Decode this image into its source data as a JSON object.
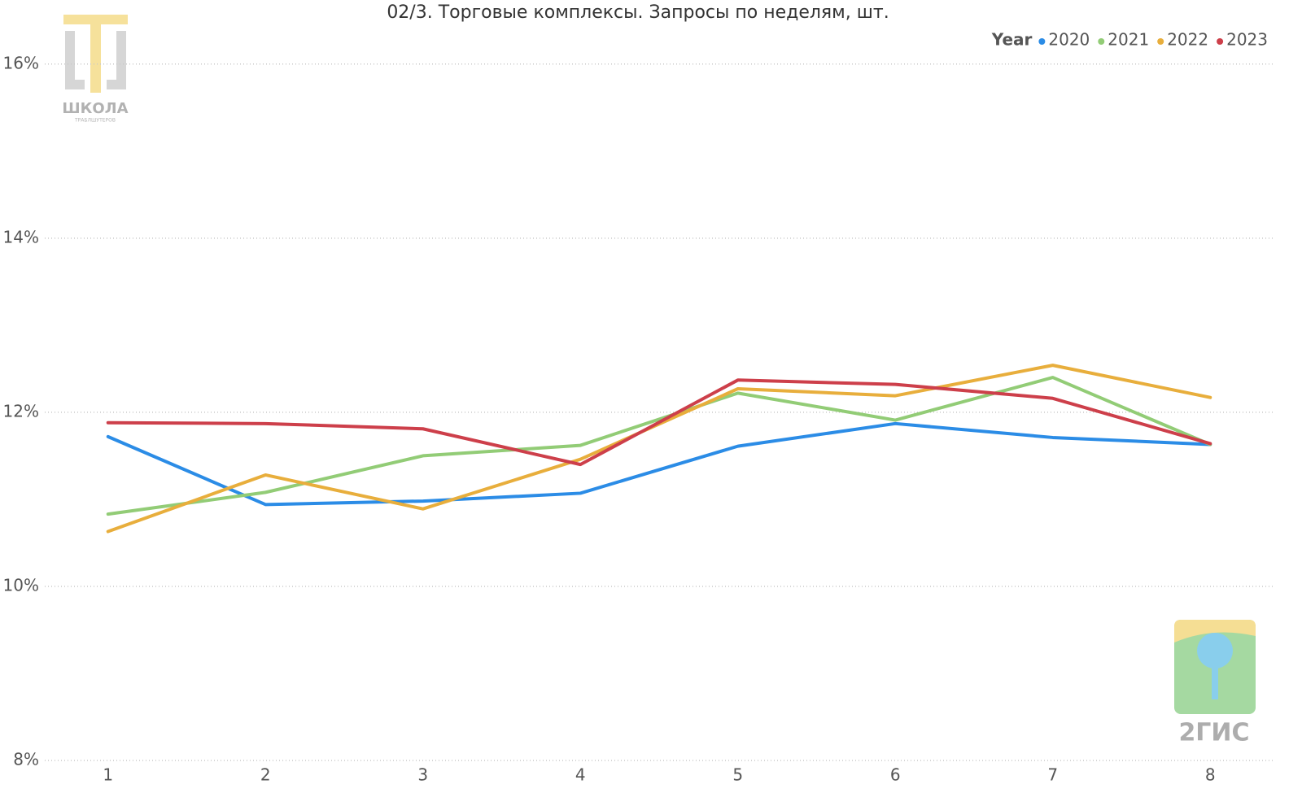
{
  "chart_data": {
    "type": "line",
    "title": "02/3. Торговые комплексы. Запросы по неделям, шт.",
    "legend_title": "Year",
    "legend_position": "top-right",
    "categories": [
      "1",
      "2",
      "3",
      "4",
      "5",
      "6",
      "7",
      "8"
    ],
    "series": [
      {
        "name": "2020",
        "color": "#2b8ce6",
        "values": [
          11.72,
          10.94,
          10.98,
          11.07,
          11.61,
          11.87,
          11.71,
          11.63
        ]
      },
      {
        "name": "2021",
        "color": "#92cc76",
        "values": [
          10.83,
          11.08,
          11.5,
          11.62,
          12.22,
          11.91,
          12.4,
          11.63
        ]
      },
      {
        "name": "2022",
        "color": "#e8ae3c",
        "values": [
          10.63,
          11.28,
          10.89,
          11.46,
          12.27,
          12.19,
          12.54,
          12.17
        ]
      },
      {
        "name": "2023",
        "color": "#cd3f4a",
        "values": [
          11.88,
          11.87,
          11.81,
          11.4,
          12.37,
          12.32,
          12.16,
          11.64
        ]
      }
    ],
    "ylim": [
      8,
      16.4
    ],
    "yticks": [
      {
        "value": 8,
        "label": "8%"
      },
      {
        "value": 10,
        "label": "10%"
      },
      {
        "value": 12,
        "label": "12%"
      },
      {
        "value": 14,
        "label": "14%"
      },
      {
        "value": 16,
        "label": "16%"
      }
    ],
    "grid": true,
    "annotations": [
      "ШКОЛА",
      "ТРАБЛШУТЕРОВ",
      "2ГИС"
    ]
  }
}
